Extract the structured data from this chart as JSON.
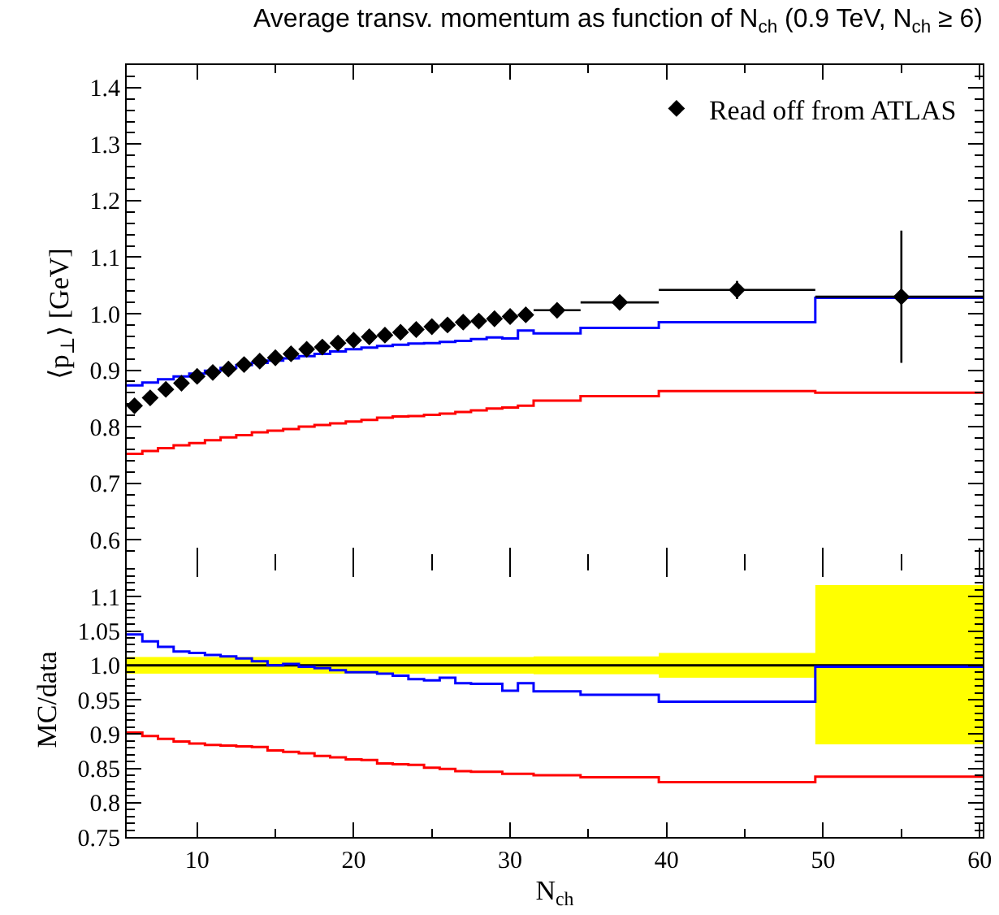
{
  "chart_data": [
    {
      "type": "scatter",
      "title": "Average transv. momentum as function of N$_{ch}$ (0.9 TeV, N$_{ch}$ ≥ 6)",
      "ylabel": "⟨p$_{⊥}$⟩ [GeV]",
      "xlim": [
        5.5,
        60.2
      ],
      "xticks": [
        10,
        20,
        30,
        40,
        50,
        60
      ],
      "ylim": [
        0.56,
        1.44
      ],
      "yticks": [
        0.6,
        0.7,
        0.8,
        0.9,
        {
          "value": 1,
          "label": "1.0"
        },
        1.1,
        1.2,
        1.3,
        1.4
      ],
      "tick_labels": "y",
      "grid": false,
      "legend": "top right",
      "series": [
        {
          "name": "Read off from ATLAS",
          "marker": "diamond",
          "color": "#000000",
          "x": [
            6,
            7,
            8,
            9,
            10,
            11,
            12,
            13,
            14,
            15,
            16,
            17,
            18,
            19,
            20,
            21,
            22,
            23,
            24,
            25,
            26,
            27,
            28,
            29,
            30,
            31,
            33,
            37,
            44.5,
            55
          ],
          "values": [
            0.837,
            0.851,
            0.866,
            0.877,
            0.889,
            0.896,
            0.902,
            0.91,
            0.916,
            0.922,
            0.929,
            0.937,
            0.941,
            0.948,
            0.953,
            0.959,
            0.962,
            0.967,
            0.972,
            0.977,
            0.98,
            0.985,
            0.987,
            0.991,
            0.995,
            0.998,
            1.006,
            1.02,
            1.042,
            1.03
          ],
          "errors": [
            null,
            null,
            null,
            null,
            null,
            null,
            null,
            null,
            null,
            null,
            null,
            null,
            null,
            null,
            null,
            null,
            null,
            null,
            null,
            null,
            null,
            null,
            null,
            null,
            null,
            null,
            0.006,
            0.006,
            0.016,
            0.117
          ],
          "xerrors": [
            null,
            null,
            null,
            null,
            null,
            null,
            null,
            null,
            null,
            null,
            null,
            null,
            null,
            null,
            null,
            null,
            null,
            null,
            null,
            null,
            null,
            null,
            null,
            null,
            null,
            null,
            [
              31.5,
              34.5
            ],
            [
              34.5,
              39.5
            ],
            [
              39.5,
              49.5
            ],
            [
              49.5,
              60.2
            ]
          ]
        },
        {
          "type": "step",
          "color": "#ff0000",
          "x": [
            5.5,
            6.5,
            7.5,
            8.5,
            9.5,
            10.5,
            11.5,
            12.5,
            13.5,
            14.5,
            15.5,
            16.5,
            17.5,
            18.5,
            19.5,
            20.5,
            21.5,
            22.5,
            23.5,
            24.5,
            25.5,
            26.5,
            27.5,
            28.5,
            29.5,
            30.5,
            31.5,
            34.5,
            39.5,
            49.5,
            60.2
          ],
          "values": [
            0.752,
            0.757,
            0.762,
            0.767,
            0.771,
            0.776,
            0.781,
            0.785,
            0.79,
            0.793,
            0.796,
            0.8,
            0.803,
            0.806,
            0.809,
            0.812,
            0.816,
            0.818,
            0.819,
            0.821,
            0.823,
            0.826,
            0.829,
            0.832,
            0.834,
            0.837,
            0.846,
            0.854,
            0.863,
            0.86,
            0.86
          ]
        },
        {
          "type": "step",
          "color": "#0000ff",
          "x": [
            5.5,
            6.5,
            7.5,
            8.5,
            9.5,
            10.5,
            11.5,
            12.5,
            13.5,
            14.5,
            15.5,
            16.5,
            17.5,
            18.5,
            19.5,
            20.5,
            21.5,
            22.5,
            23.5,
            24.5,
            25.5,
            26.5,
            27.5,
            28.5,
            29.5,
            30.5,
            31.5,
            34.5,
            39.5,
            49.5,
            60.2
          ],
          "values": [
            0.873,
            0.878,
            0.884,
            0.889,
            0.894,
            0.899,
            0.904,
            0.909,
            0.913,
            0.917,
            0.921,
            0.925,
            0.929,
            0.933,
            0.937,
            0.94,
            0.943,
            0.945,
            0.947,
            0.948,
            0.95,
            0.952,
            0.955,
            0.958,
            0.956,
            0.97,
            0.965,
            0.975,
            0.985,
            1.028,
            1.028
          ]
        }
      ]
    },
    {
      "type": "step",
      "ylabel": "MC/data",
      "xlabel": "N$_{ch}$",
      "xlim": [
        5.5,
        60.2
      ],
      "xticks": [
        10,
        20,
        30,
        40,
        50,
        60
      ],
      "ylim": [
        0.75,
        1.15
      ],
      "yticks": [
        0.75,
        0.8,
        0.85,
        0.9,
        0.95,
        {
          "value": 1,
          "label": "1.0"
        },
        1.05,
        1.1
      ],
      "grid": false,
      "series": [
        {
          "color": "#ffff00",
          "x": [
            5.5,
            6.5,
            7.5,
            8.5,
            9.5,
            10.5,
            11.5,
            12.5,
            13.5,
            14.5,
            15.5,
            16.5,
            17.5,
            18.5,
            19.5,
            20.5,
            21.5,
            22.5,
            23.5,
            24.5,
            25.5,
            26.5,
            27.5,
            28.5,
            29.5,
            30.5,
            31.5,
            34.5,
            39.5,
            49.5,
            60.2
          ],
          "values": [
            null,
            null,
            null,
            null,
            null,
            null,
            null,
            null,
            null,
            null,
            null,
            null,
            null,
            null,
            null,
            null,
            null,
            null,
            null,
            null,
            null,
            null,
            null,
            null,
            null,
            null,
            null,
            null,
            null,
            null,
            null
          ],
          "lower": [
            0.988,
            0.988,
            0.988,
            0.988,
            0.988,
            0.988,
            0.988,
            0.988,
            0.988,
            0.988,
            0.988,
            0.988,
            0.988,
            0.988,
            0.988,
            0.988,
            0.988,
            0.988,
            0.988,
            0.988,
            0.988,
            0.988,
            0.988,
            0.988,
            0.988,
            0.988,
            0.987,
            0.987,
            0.982,
            0.885,
            0.885
          ],
          "upper": [
            1.012,
            1.012,
            1.012,
            1.012,
            1.012,
            1.012,
            1.012,
            1.012,
            1.012,
            1.012,
            1.012,
            1.012,
            1.012,
            1.012,
            1.012,
            1.012,
            1.012,
            1.012,
            1.012,
            1.012,
            1.012,
            1.012,
            1.012,
            1.012,
            1.012,
            1.012,
            1.013,
            1.013,
            1.018,
            1.117,
            1.117
          ]
        },
        {
          "color": "#000000",
          "x": [
            5.5,
            60.2
          ],
          "values": [
            1,
            1
          ]
        },
        {
          "color": "#ff0000",
          "x": [
            5.5,
            6.5,
            7.5,
            8.5,
            9.5,
            10.5,
            11.5,
            12.5,
            13.5,
            14.5,
            15.5,
            16.5,
            17.5,
            18.5,
            19.5,
            20.5,
            21.5,
            22.5,
            23.5,
            24.5,
            25.5,
            26.5,
            27.5,
            28.5,
            29.5,
            30.5,
            31.5,
            34.5,
            39.5,
            49.5,
            60.2
          ],
          "values": [
            0.902,
            0.897,
            0.893,
            0.889,
            0.886,
            0.884,
            0.883,
            0.882,
            0.881,
            0.876,
            0.874,
            0.872,
            0.868,
            0.866,
            0.863,
            0.862,
            0.857,
            0.856,
            0.855,
            0.851,
            0.849,
            0.846,
            0.845,
            0.845,
            0.842,
            0.842,
            0.84,
            0.837,
            0.83,
            0.838,
            0.838
          ]
        },
        {
          "color": "#0000ff",
          "x": [
            5.5,
            6.5,
            7.5,
            8.5,
            9.5,
            10.5,
            11.5,
            12.5,
            13.5,
            14.5,
            15.5,
            16.5,
            17.5,
            18.5,
            19.5,
            20.5,
            21.5,
            22.5,
            23.5,
            24.5,
            25.5,
            26.5,
            27.5,
            28.5,
            29.5,
            30.5,
            31.5,
            34.5,
            39.5,
            49.5,
            60.2
          ],
          "values": [
            1.045,
            1.035,
            1.027,
            1.02,
            1.018,
            1.015,
            1.013,
            1.01,
            1.006,
            1.0,
            1.002,
            0.998,
            0.996,
            0.993,
            0.99,
            0.99,
            0.988,
            0.985,
            0.98,
            0.978,
            0.982,
            0.974,
            0.973,
            0.973,
            0.963,
            0.974,
            0.962,
            0.957,
            0.947,
            0.998,
            0.998
          ]
        }
      ]
    }
  ]
}
